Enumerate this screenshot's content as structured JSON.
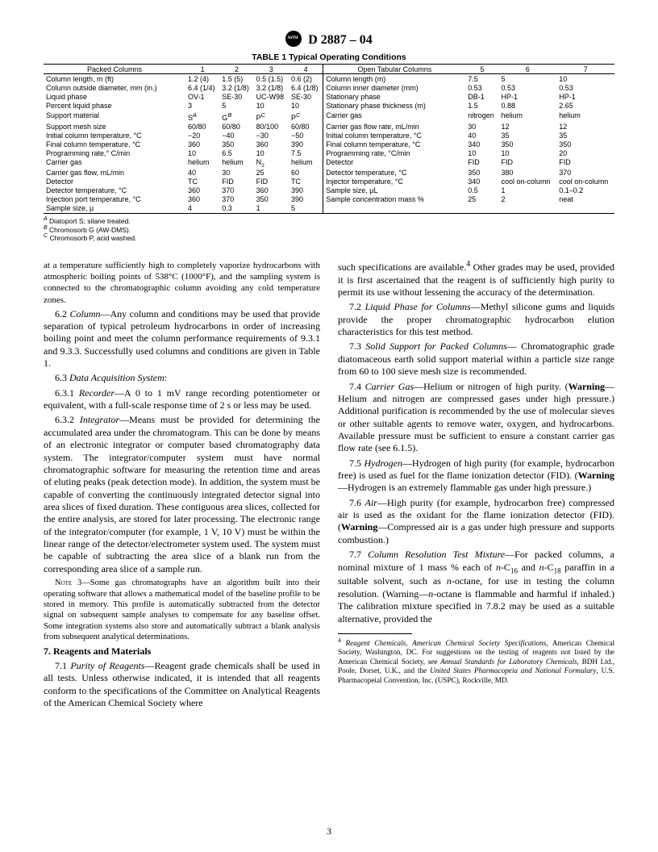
{
  "header": {
    "designation": "D 2887 – 04"
  },
  "table": {
    "caption": "TABLE 1  Typical Operating Conditions",
    "left_header": "Packed Columns",
    "right_header": "Open Tabular Columns",
    "left_col_nums": [
      "1",
      "2",
      "3",
      "4"
    ],
    "right_col_nums": [
      "5",
      "6",
      "7"
    ],
    "left_rows": [
      {
        "label": "Column length, m (ft)",
        "v": [
          "1.2 (4)",
          "1.5 (5)",
          "0.5 (1.5)",
          "0.6 (2)"
        ]
      },
      {
        "label": "Column outside diameter, mm (in.)",
        "v": [
          "6.4 (1/4)",
          "3.2 (1/8)",
          "3.2 (1/8)",
          "6.4 (1/8)"
        ]
      },
      {
        "label": "Liquid phase",
        "v": [
          "OV-1",
          "SE-30",
          "UC-W98",
          "SE-30"
        ]
      },
      {
        "label": "Percent liquid phase",
        "v": [
          "3",
          "5",
          "10",
          "10"
        ]
      },
      {
        "label": "",
        "v": [
          "",
          "",
          "",
          ""
        ]
      },
      {
        "label": "Support material",
        "v": [
          "SA",
          "GB",
          "PC",
          "PC"
        ],
        "sup": [
          "A",
          "B",
          "C",
          "C"
        ]
      },
      {
        "label": "Support mesh size",
        "v": [
          "60/80",
          "60/80",
          "80/100",
          "60/80"
        ]
      },
      {
        "label": "Initial column temperature, °C",
        "v": [
          "−20",
          "−40",
          "−30",
          "−50"
        ]
      },
      {
        "label": "Final column temperature, °C",
        "v": [
          "360",
          "350",
          "360",
          "390"
        ]
      },
      {
        "label": "Programming rate,° C/min",
        "v": [
          "10",
          "6.5",
          "10",
          "7.5"
        ]
      },
      {
        "label": "Carrier gas",
        "v": [
          "helium",
          "helium",
          "N2",
          "helium"
        ]
      },
      {
        "label": "Carrier gas flow, mL/min",
        "v": [
          "40",
          "30",
          "25",
          "60"
        ]
      },
      {
        "label": "Detector",
        "v": [
          "TC",
          "FID",
          "FID",
          "TC"
        ]
      },
      {
        "label": "Detector temperature, °C",
        "v": [
          "360",
          "370",
          "360",
          "390"
        ]
      },
      {
        "label": "Injection port temperature, °C",
        "v": [
          "360",
          "370",
          "350",
          "390"
        ]
      },
      {
        "label": "Sample size, µ",
        "v": [
          "4",
          "0.3",
          "1",
          "5"
        ]
      }
    ],
    "right_rows": [
      {
        "label": "Column length (m)",
        "v": [
          "7.5",
          "5",
          "10"
        ]
      },
      {
        "label": "Column inner diameter (mm)",
        "v": [
          "0.53",
          "0.53",
          "0.53"
        ]
      },
      {
        "label": "Stationary phase",
        "v": [
          "DB-1",
          "HP-1",
          "HP-1"
        ]
      },
      {
        "label": "Stationary phase thickness (m)",
        "v": [
          "1.5",
          "0.88",
          "2.65"
        ]
      },
      {
        "label": "",
        "v": [
          "",
          "",
          ""
        ]
      },
      {
        "label": "Carrier gas",
        "v": [
          "nitrogen",
          "helium",
          "helium"
        ]
      },
      {
        "label": "Carrier gas flow rate, mL/min",
        "v": [
          "30",
          "12",
          "12"
        ]
      },
      {
        "label": "Initial column temperature, °C",
        "v": [
          "40",
          "35",
          "35"
        ]
      },
      {
        "label": "Final column temperature, °C",
        "v": [
          "340",
          "350",
          "350"
        ]
      },
      {
        "label": "Programming rate, °C/min",
        "v": [
          "10",
          "10",
          "20"
        ]
      },
      {
        "label": "Detector",
        "v": [
          "FID",
          "FID",
          "FID"
        ]
      },
      {
        "label": "Detector temperature, °C",
        "v": [
          "350",
          "380",
          "370"
        ]
      },
      {
        "label": "Injector temperature, °C",
        "v": [
          "340",
          "cool on-column",
          "cool on-column"
        ]
      },
      {
        "label": "Sample size, µL",
        "v": [
          "0.5",
          "1",
          "0.1–0.2"
        ]
      },
      {
        "label": "Sample concentration mass %",
        "v": [
          "25",
          "2",
          "neat"
        ]
      },
      {
        "label": "",
        "v": [
          "",
          "",
          ""
        ]
      }
    ],
    "fnA": "Diatoport S; silane treated.",
    "fnB": "Chromosorb G (AW-DMS).",
    "fnC": "Chromosorb P, acid washed."
  },
  "left_col": {
    "p0": "at a temperature sufficiently high to completely vaporize hydrocarbons with atmospheric boiling points of 538°C (1000°F), and the sampling system is connected to the chromatographic column avoiding any cold temperature zones.",
    "s62_label": "6.2",
    "s62_title": "Column",
    "s62_text": "—Any column and conditions may be used that provide separation of typical petroleum hydrocarbons in order of increasing boiling point and meet the column performance requirements of 9.3.1 and 9.3.3. Successfully used columns and conditions are given in Table 1.",
    "s63_label": "6.3",
    "s63_title": "Data Acquisition System",
    "s631_label": "6.3.1",
    "s631_title": "Recorder",
    "s631_text": "—A 0 to 1 mV range recording potentiometer or equivalent, with a full-scale response time of 2 s or less may be used.",
    "s632_label": "6.3.2",
    "s632_title": "Integrator",
    "s632_text": "—Means must be provided for determining the accumulated area under the chromatogram. This can be done by means of an electronic integrator or computer based chromatography data system. The integrator/computer system must have normal chromatographic software for measuring the retention time and areas of eluting peaks (peak detection mode). In addition, the system must be capable of converting the continuously integrated detector signal into area slices of fixed duration. These contiguous area slices, collected for the entire analysis, are stored for later processing. The electronic range of the integrator/computer (for example, 1 V, 10 V) must be within the linear range of the detector/electrometer system used. The system must be capable of subtracting the area slice of a blank run from the corresponding area slice of a sample run.",
    "note3": "3—Some gas chromatographs have an algorithm built into their operating software that allows a mathematical model of the baseline profile to be stored in memory. This profile is automatically subtracted from the detector signal on subsequent sample analyses to compensate for any baseline offset. Some integration systems also store and automatically subtract a blank analysis from subsequent analytical determinations.",
    "s7_head": "7. Reagents and Materials",
    "s71_label": "7.1",
    "s71_title": "Purity of Reagents",
    "s71_text": "—Reagent grade chemicals shall be used in all tests. Unless otherwise indicated, it is intended that all reagents conform to the specifications of the Committee on Analytical Reagents of the American Chemical Society where"
  },
  "right_col": {
    "p_top": "such specifications are available.4 Other grades may be used, provided it is first ascertained that the reagent is of sufficiently high purity to permit its use without lessening the accuracy of the determination.",
    "s72_label": "7.2",
    "s72_title": "Liquid Phase for Columns",
    "s72_text": "—Methyl silicone gums and liquids provide the proper chromatographic hydrocarbon elution characteristics for this test method.",
    "s73_label": "7.3",
    "s73_title": "Solid Support for Packed Columns",
    "s73_text": "— Chromatographic grade diatomaceous earth solid support material within a particle size range from 60 to 100 sieve mesh size is recommended.",
    "s74_label": "7.4",
    "s74_title": "Carrier Gas",
    "s74_text": "—Helium or nitrogen of high purity. (Warning—Helium and nitrogen are compressed gases under high pressure.) Additional purification is recommended by the use of molecular sieves or other suitable agents to remove water, oxygen, and hydrocarbons. Available pressure must be sufficient to ensure a constant carrier gas flow rate (see 6.1.5).",
    "s75_label": "7.5",
    "s75_title": "Hydrogen",
    "s75_text": "—Hydrogen of high purity (for example, hydrocarbon free) is used as fuel for the flame ionization detector (FID). (Warning—Hydrogen is an extremely flammable gas under high pressure.)",
    "s76_label": "7.6",
    "s76_title": "Air",
    "s76_text": "—High purity (for example, hydrocarbon free) compressed air is used as the oxidant for the flame ionization detector (FID). (Warning—Compressed air is a gas under high pressure and supports combustion.)",
    "s77_label": "7.7",
    "s77_title": "Column Resolution Test Mixture",
    "s77_text_a": "—For packed columns, a nominal mixture of 1 mass % each of ",
    "s77_text_b": " and ",
    "s77_text_c": " paraffin in a suitable solvent, such as ",
    "s77_text_d": "-octane, for use in testing the column resolution. (Warning—",
    "s77_text_e": "-octane is flammable and harmful if inhaled.) The calibration mixture specified in 7.8.2 may be used as a suitable alternative, provided the",
    "fn4": "Reagent Chemicals, American Chemical Society Specifications, American Chemical Society, Washington, DC. For suggestions on the testing of reagents not listed by the American Chemical Society, see Annual Standards for Laboratory Chemicals, BDH Ltd., Poole, Dorset, U.K., and the United States Pharmacopeia and National Formulary, U.S. Pharmacopeial Convention, Inc. (USPC), Rockville, MD."
  },
  "page_number": "3"
}
